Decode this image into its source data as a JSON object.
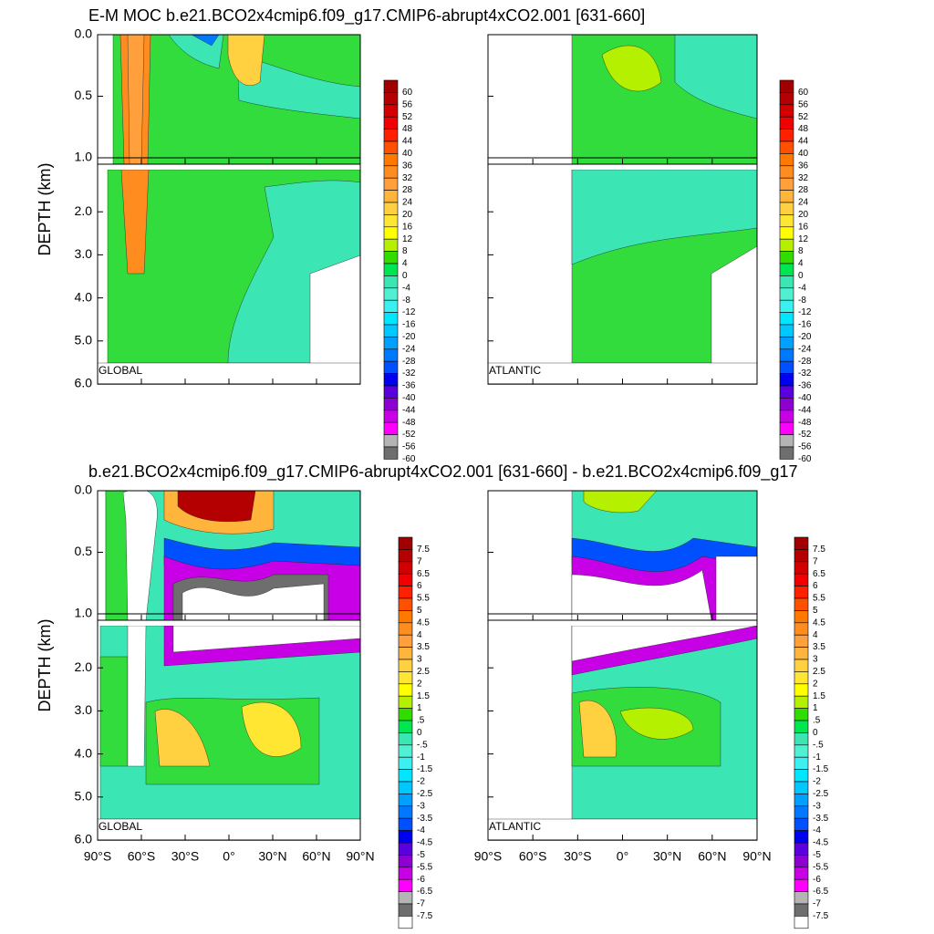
{
  "chart_data": [
    {
      "type": "contour",
      "title": "E-M MOC  b.e21.BCO2x4cmip6.f09_g17.CMIP6-abrupt4xCO2.001 [631-660]",
      "ylabel": "DEPTH (km)",
      "panels": [
        "GLOBAL",
        "ATLANTIC"
      ],
      "xlim": [
        -90,
        90
      ],
      "ylim": [
        0,
        6
      ],
      "ysplit": 1,
      "yticks": [
        {
          "value": 0,
          "label": "0.0"
        },
        0.5,
        {
          "value": 1,
          "label": "1.0"
        },
        {
          "value": 2,
          "label": "2.0"
        },
        {
          "value": 3,
          "label": "3.0"
        },
        {
          "value": 4,
          "label": "4.0"
        },
        {
          "value": 5,
          "label": "5.0"
        },
        {
          "value": 6,
          "label": "6.0"
        }
      ],
      "colorbar": {
        "levels": [
          60,
          56,
          52,
          48,
          44,
          40,
          36,
          32,
          28,
          24,
          20,
          16,
          12,
          8,
          4,
          0,
          -4,
          -8,
          -12,
          -16,
          -20,
          -24,
          -28,
          -32,
          -36,
          -40,
          -44,
          -48,
          -52,
          -56,
          -60
        ],
        "colors": [
          "#a00000",
          "#b40000",
          "#d20000",
          "#f00000",
          "#ff2000",
          "#ff5000",
          "#ff7800",
          "#ff8c1e",
          "#ffa03c",
          "#ffb43c",
          "#ffd040",
          "#ffe632",
          "#ffff00",
          "#b4f000",
          "#32dc00",
          "#00e650",
          "#3ce6b4",
          "#50f0d2",
          "#3cf0f0",
          "#00e6ff",
          "#00c8ff",
          "#00a0ff",
          "#0078ff",
          "#0050ff",
          "#0000f0",
          "#5a00dc",
          "#8c00d2",
          "#c800e6",
          "#ff00ff",
          "#b4b4b4",
          "#6e6e6e"
        ]
      }
    },
    {
      "type": "contour",
      "title": "b.e21.BCO2x4cmip6.f09_g17.CMIP6-abrupt4xCO2.001 [631-660] - b.e21.BCO2x4cmip6.f09_g17",
      "ylabel": "DEPTH (km)",
      "panels": [
        "GLOBAL",
        "ATLANTIC"
      ],
      "xlim": [
        -90,
        90
      ],
      "xticks": [
        {
          "value": -90,
          "label": "90°S"
        },
        {
          "value": -60,
          "label": "60°S"
        },
        {
          "value": -30,
          "label": "30°S"
        },
        {
          "value": 0,
          "label": "0°"
        },
        {
          "value": 30,
          "label": "30°N"
        },
        {
          "value": 60,
          "label": "60°N"
        },
        {
          "value": 90,
          "label": "90°N"
        }
      ],
      "ylim": [
        0,
        6
      ],
      "ysplit": 1,
      "yticks": [
        {
          "value": 0,
          "label": "0.0"
        },
        0.5,
        {
          "value": 1,
          "label": "1.0"
        },
        {
          "value": 2,
          "label": "2.0"
        },
        {
          "value": 3,
          "label": "3.0"
        },
        {
          "value": 4,
          "label": "4.0"
        },
        {
          "value": 5,
          "label": "5.0"
        },
        {
          "value": 6,
          "label": "6.0"
        }
      ],
      "colorbar": {
        "levels": [
          7.5,
          7,
          6.5,
          6,
          5.5,
          5,
          4.5,
          4,
          3.5,
          3,
          2.5,
          2,
          1.5,
          1,
          {
            "value": 0.5,
            "label": ".5"
          },
          0,
          {
            "value": -0.5,
            "label": "-.5"
          },
          -1,
          -1.5,
          -2,
          -2.5,
          -3,
          -3.5,
          -4,
          -4.5,
          -5,
          -5.5,
          -6,
          -6.5,
          -7,
          -7.5
        ],
        "colors": [
          "#a00000",
          "#b40000",
          "#d20000",
          "#f00000",
          "#ff2000",
          "#ff5000",
          "#ff7800",
          "#ff8c1e",
          "#ffa03c",
          "#ffb43c",
          "#ffd040",
          "#ffe632",
          "#ffff00",
          "#b4f000",
          "#32dc00",
          "#00e650",
          "#3ce6b4",
          "#50f0d2",
          "#3cf0f0",
          "#00e6ff",
          "#00c8ff",
          "#00a0ff",
          "#0078ff",
          "#0050ff",
          "#0000f0",
          "#5a00dc",
          "#8c00d2",
          "#c800e6",
          "#ff00ff",
          "#b4b4b4",
          "#6e6e6e",
          "#ffffff"
        ]
      }
    }
  ]
}
